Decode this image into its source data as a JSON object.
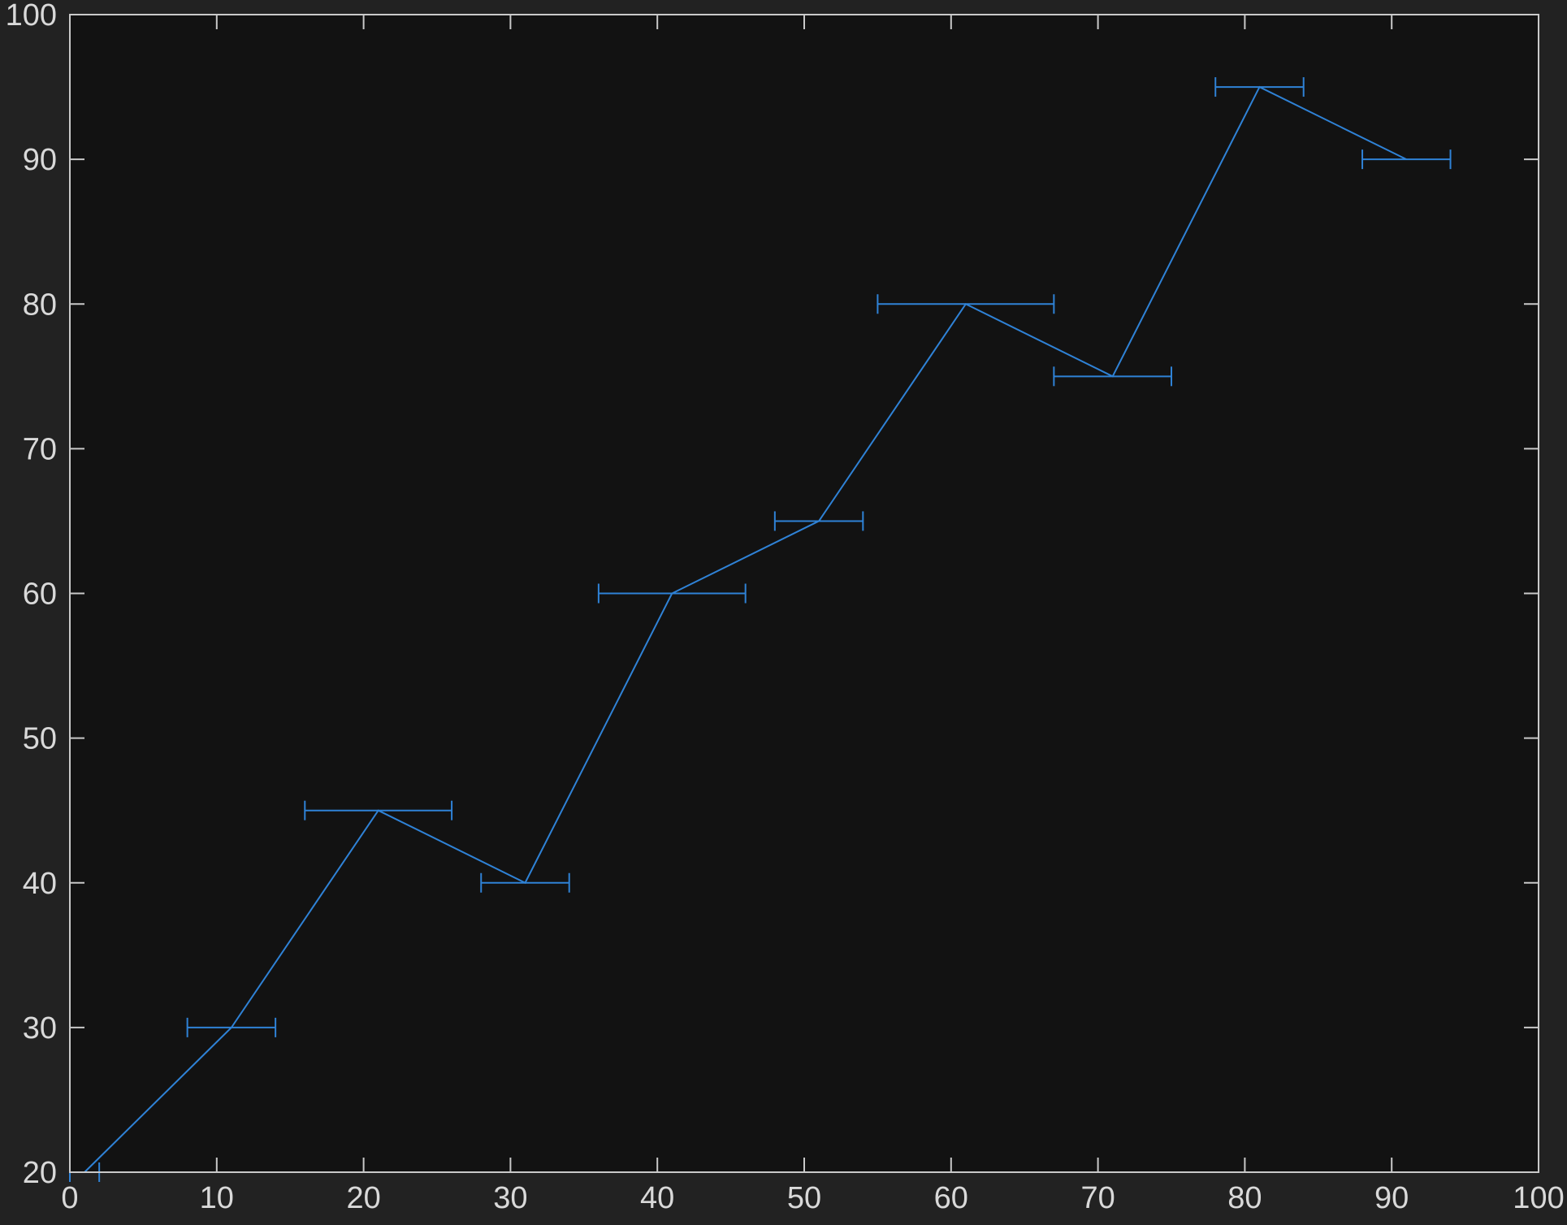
{
  "colors": {
    "page_background": "#222222",
    "plot_background": "#121212",
    "axis": "#c9c9c9",
    "tick_label": "#d9d9d9",
    "series": "#2f82d6"
  },
  "chart_data": {
    "type": "line",
    "title": "",
    "xlabel": "",
    "ylabel": "",
    "xlim": [
      0,
      100
    ],
    "ylim": [
      20,
      100
    ],
    "grid": false,
    "legend": "none",
    "x_ticks": [
      "0",
      "10",
      "20",
      "30",
      "40",
      "50",
      "60",
      "70",
      "80",
      "90",
      "100"
    ],
    "y_ticks": [
      "20",
      "30",
      "40",
      "50",
      "60",
      "70",
      "80",
      "90",
      "100"
    ],
    "series": [
      {
        "x": [
          1,
          11,
          21,
          31,
          41,
          51,
          61,
          71,
          81,
          91
        ],
        "y": [
          20,
          30,
          45,
          40,
          60,
          65,
          80,
          75,
          95,
          90
        ],
        "x_error_neg": [
          1,
          3,
          5,
          3,
          5,
          3,
          6,
          4,
          3,
          3
        ],
        "x_error_pos": [
          1,
          3,
          5,
          3,
          5,
          3,
          6,
          4,
          3,
          3
        ]
      }
    ]
  }
}
